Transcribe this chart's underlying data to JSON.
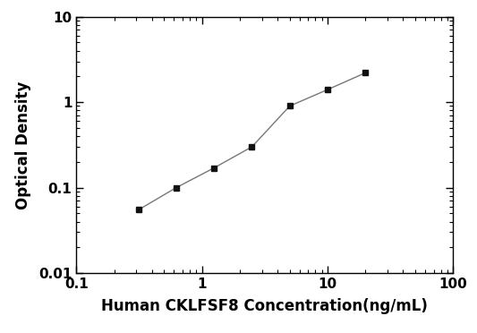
{
  "x_values": [
    0.313,
    0.625,
    1.25,
    2.5,
    5,
    10,
    20
  ],
  "y_values": [
    0.055,
    0.1,
    0.17,
    0.3,
    0.9,
    1.4,
    2.2
  ],
  "x_label": "Human CKLFSF8 Concentration(ng/mL)",
  "y_label": "Optical Density",
  "x_lim": [
    0.1,
    100
  ],
  "y_lim": [
    0.01,
    10
  ],
  "line_color": "#777777",
  "marker_color": "#111111",
  "marker": "s",
  "marker_size": 5,
  "line_width": 1.0,
  "background_color": "#ffffff",
  "x_label_fontsize": 12,
  "y_label_fontsize": 12,
  "tick_fontsize": 11,
  "x_ticks": [
    0.1,
    1,
    10,
    100
  ],
  "x_tick_labels": [
    "0.1",
    "1",
    "10",
    "100"
  ],
  "y_ticks": [
    0.01,
    0.1,
    1,
    10
  ],
  "y_tick_labels": [
    "0.01",
    "0.1",
    "1",
    "10"
  ]
}
